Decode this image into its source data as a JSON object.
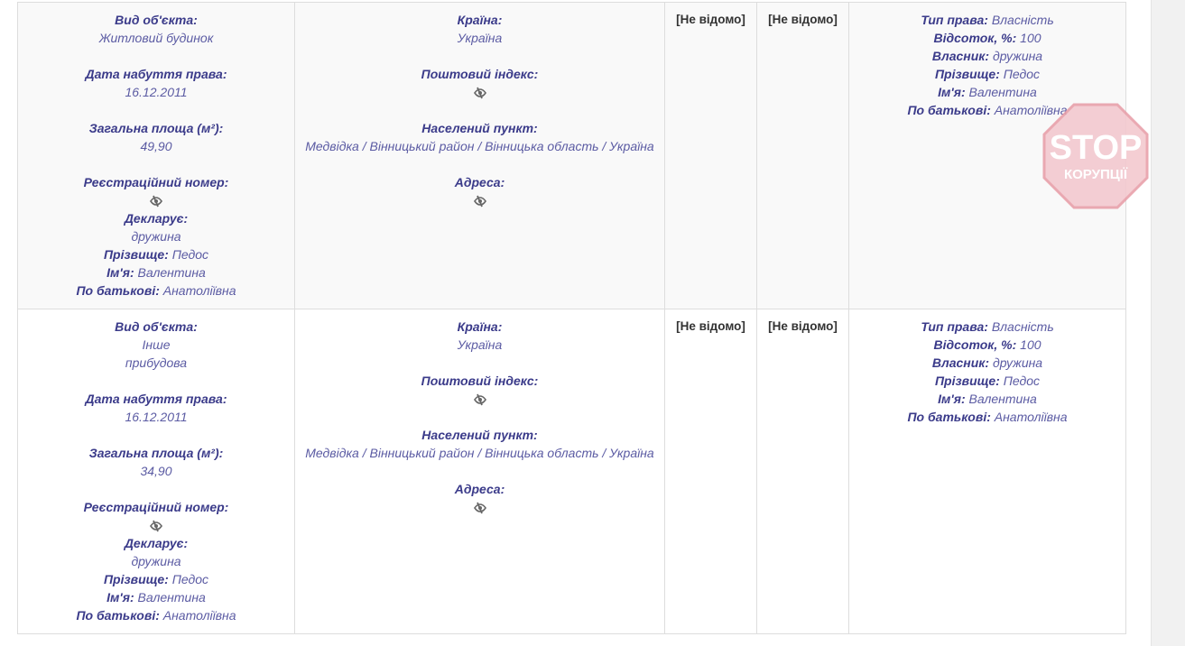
{
  "rows": [
    {
      "object": [
        {
          "label": "Вид об'єкта:",
          "value": "Житловий будинок"
        },
        {
          "gap": true
        },
        {
          "label": "Дата набуття права:",
          "value": "16.12.2011"
        },
        {
          "gap": true
        },
        {
          "label": "Загальна площа (м²):",
          "value": "49,90"
        },
        {
          "gap": true
        },
        {
          "label": "Реєстраційний номер:",
          "hidden": true
        },
        {
          "label": "Декларує:",
          "value": "дружина"
        },
        {
          "label": "Прізвище:",
          "inline": "Педос"
        },
        {
          "label": "Ім'я:",
          "inline": "Валентина"
        },
        {
          "label": "По батькові:",
          "inline": "Анатоліївна"
        }
      ],
      "location": [
        {
          "label": "Країна:",
          "value": "Україна"
        },
        {
          "gap": true
        },
        {
          "label": "Поштовий індекс:",
          "hidden": true
        },
        {
          "gap": true
        },
        {
          "label": "Населений пункт:",
          "value": "Медвідка / Вінницький район / Вінницька область / Україна"
        },
        {
          "gap": true
        },
        {
          "label": "Адреса:",
          "hidden": true
        }
      ],
      "col3": "[Не відомо]",
      "col4": "[Не відомо]",
      "rights": [
        {
          "label": "Тип права:",
          "inline": "Власність"
        },
        {
          "label": "Відсоток, %:",
          "inline": "100"
        },
        {
          "label": "Власник:",
          "inline": "дружина"
        },
        {
          "label": "Прізвище:",
          "inline": "Педос"
        },
        {
          "label": "Ім'я:",
          "inline": "Валентина"
        },
        {
          "label": "По батькові:",
          "inline": "Анатоліївна"
        }
      ]
    },
    {
      "object": [
        {
          "label": "Вид об'єкта:",
          "value": "Інше"
        },
        {
          "value": "прибудова"
        },
        {
          "gap": true
        },
        {
          "label": "Дата набуття права:",
          "value": "16.12.2011"
        },
        {
          "gap": true
        },
        {
          "label": "Загальна площа (м²):",
          "value": "34,90"
        },
        {
          "gap": true
        },
        {
          "label": "Реєстраційний номер:",
          "hidden": true
        },
        {
          "label": "Декларує:",
          "value": "дружина"
        },
        {
          "label": "Прізвище:",
          "inline": "Педос"
        },
        {
          "label": "Ім'я:",
          "inline": "Валентина"
        },
        {
          "label": "По батькові:",
          "inline": "Анатоліївна"
        }
      ],
      "location": [
        {
          "label": "Країна:",
          "value": "Україна"
        },
        {
          "gap": true
        },
        {
          "label": "Поштовий індекс:",
          "hidden": true
        },
        {
          "gap": true
        },
        {
          "label": "Населений пункт:",
          "value": "Медвідка / Вінницький район / Вінницька область / Україна"
        },
        {
          "gap": true
        },
        {
          "label": "Адреса:",
          "hidden": true
        }
      ],
      "col3": "[Не відомо]",
      "col4": "[Не відомо]",
      "rights": [
        {
          "label": "Тип права:",
          "inline": "Власність"
        },
        {
          "label": "Відсоток, %:",
          "inline": "100"
        },
        {
          "label": "Власник:",
          "inline": "дружина"
        },
        {
          "label": "Прізвище:",
          "inline": "Педос"
        },
        {
          "label": "Ім'я:",
          "inline": "Валентина"
        },
        {
          "label": "По батькові:",
          "inline": "Анатоліївна"
        }
      ]
    }
  ],
  "watermark": {
    "line1": "STOP",
    "line2": "КОРУПЦІЇ",
    "color": "#e8a0aa"
  },
  "colors": {
    "label": "#3b3b8a",
    "value": "#5b5ba3"
  }
}
